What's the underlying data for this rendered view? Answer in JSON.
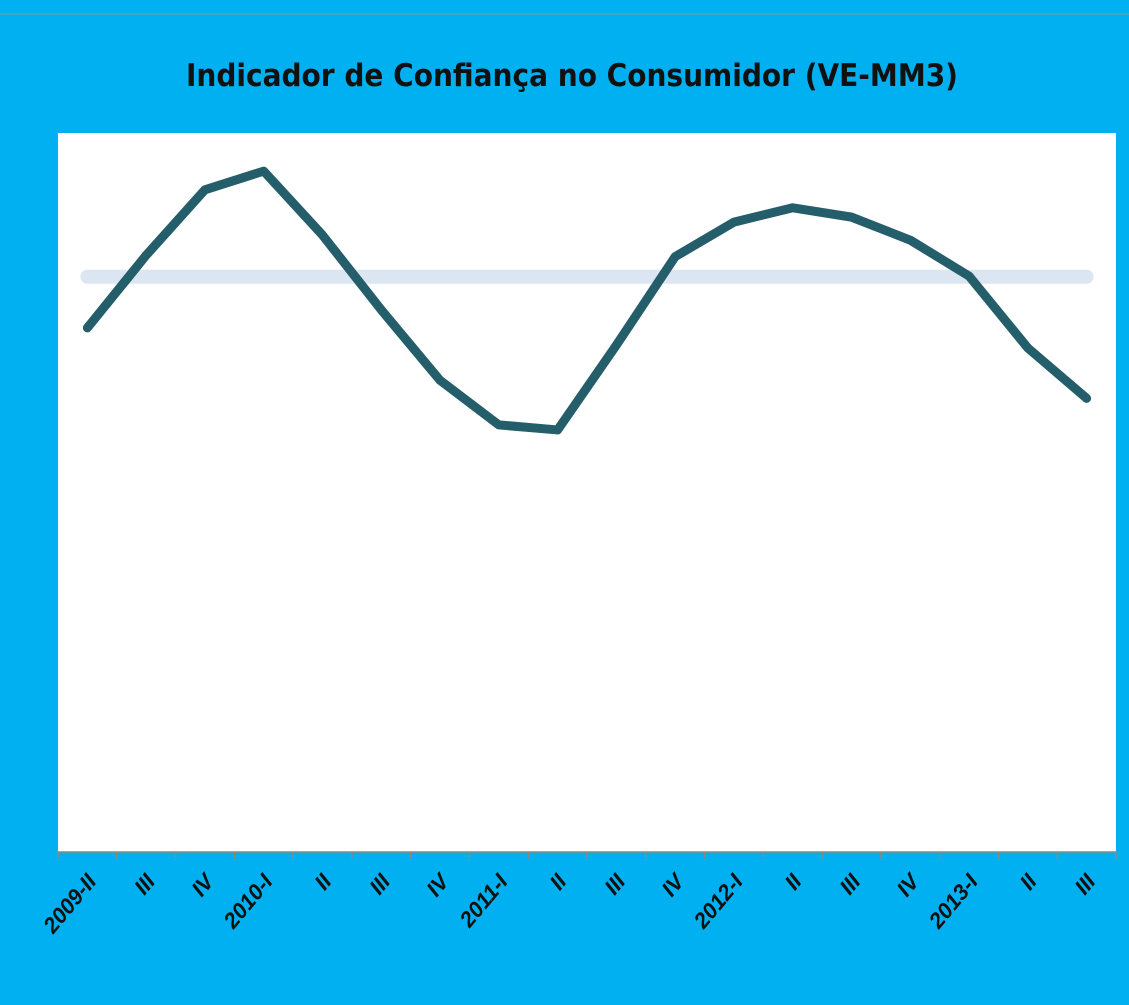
{
  "chart_data": {
    "type": "line",
    "title": "Indicador de Confiança no Consumidor (VE-MM3)",
    "categories": [
      "2009-II",
      "III",
      "IV",
      "2010-I",
      "II",
      "III",
      "IV",
      "2011-I",
      "II",
      "III",
      "IV",
      "2012-I",
      "II",
      "III",
      "IV",
      "2013-I",
      "II",
      "III"
    ],
    "series": [
      {
        "color": "#255e6b",
        "values": [
          72.9,
          83.0,
          92.1,
          94.7,
          85.8,
          75.4,
          65.6,
          59.4,
          58.7,
          70.5,
          82.8,
          87.6,
          89.6,
          88.3,
          85.1,
          80.1,
          70.1,
          63.1
        ]
      },
      {
        "color": "#dce6f2",
        "values": [
          80,
          80,
          80,
          80,
          80,
          80,
          80,
          80,
          80,
          80,
          80,
          80,
          80,
          80,
          80,
          80,
          80,
          80
        ]
      }
    ],
    "ylim": [
      0,
      100
    ]
  }
}
